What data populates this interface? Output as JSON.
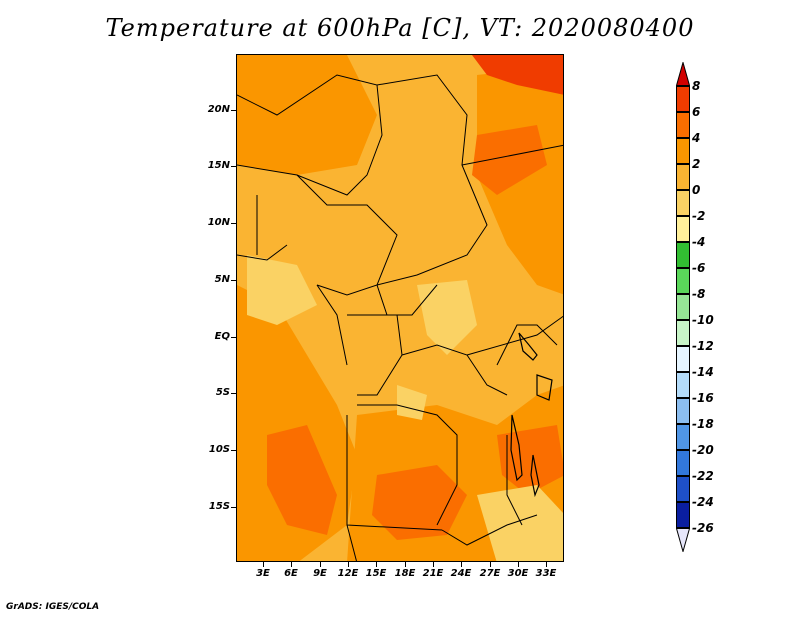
{
  "title": "Temperature at 600hPa [C], VT: 2020080400",
  "credit": "GrADS: IGES/COLA",
  "map": {
    "lat_labels": [
      "20N",
      "15N",
      "10N",
      "5N",
      "EQ",
      "5S",
      "10S",
      "15S"
    ],
    "lon_labels": [
      "3E",
      "6E",
      "9E",
      "12E",
      "15E",
      "18E",
      "21E",
      "24E",
      "27E",
      "30E",
      "33E"
    ]
  },
  "colorbar": {
    "labels": [
      "8",
      "6",
      "4",
      "2",
      "0",
      "-2",
      "-4",
      "-6",
      "-8",
      "-10",
      "-12",
      "-14",
      "-16",
      "-18",
      "-20",
      "-22",
      "-24",
      "-26"
    ],
    "colors": [
      "#d20000",
      "#f03c00",
      "#fa6e00",
      "#fa9600",
      "#fab432",
      "#fad264",
      "#fff09b",
      "#32be32",
      "#5ad75a",
      "#96e696",
      "#c8f5c8",
      "#e6f5ff",
      "#b4dcfa",
      "#8cbef0",
      "#5096e6",
      "#3278dc",
      "#1e50c8",
      "#0a1ea0",
      "#000050"
    ],
    "top_triangle_color": "#d20000",
    "bottom_triangle_color": "#e6e6fa"
  }
}
